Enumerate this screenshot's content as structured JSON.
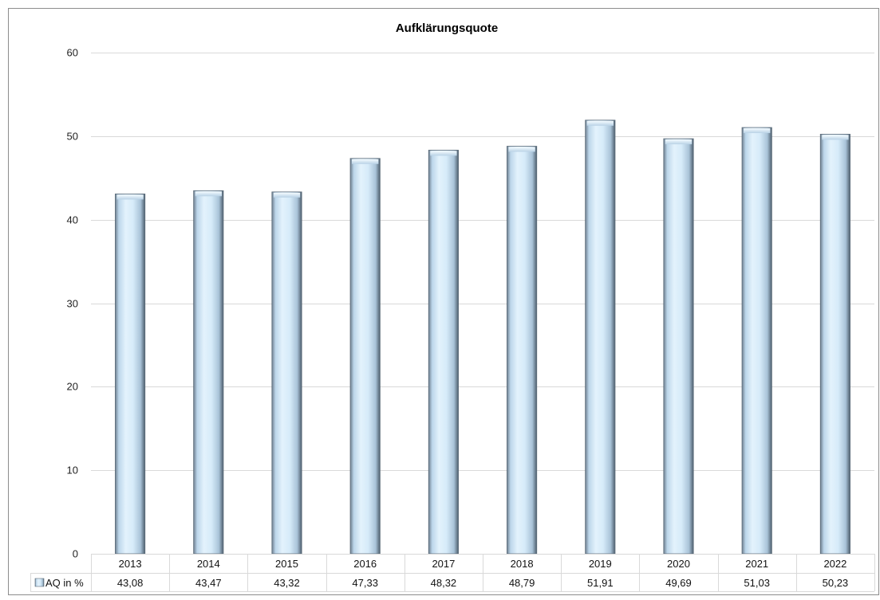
{
  "chart_data": {
    "type": "bar",
    "title": "Aufklärungsquote",
    "categories": [
      "2013",
      "2014",
      "2015",
      "2016",
      "2017",
      "2018",
      "2019",
      "2020",
      "2021",
      "2022"
    ],
    "series": [
      {
        "name": "AQ in %",
        "values": [
          43.08,
          43.47,
          43.32,
          47.33,
          48.32,
          48.79,
          51.91,
          49.69,
          51.03,
          50.23
        ],
        "value_labels": [
          "43,08",
          "43,47",
          "43,32",
          "47,33",
          "48,32",
          "48,79",
          "51,91",
          "49,69",
          "51,03",
          "50,23"
        ]
      }
    ],
    "yticks": [
      "0",
      "10",
      "20",
      "30",
      "40",
      "50",
      "60"
    ],
    "ylim": [
      0,
      60
    ],
    "grid": true,
    "legend": "data-table-left",
    "colors": {
      "bar_light": "#dceefb",
      "bar_mid": "#bcd8ee",
      "bar_dark": "#5b6f80",
      "grid": "#d9d9d9",
      "frame": "#8c8c8c"
    }
  }
}
